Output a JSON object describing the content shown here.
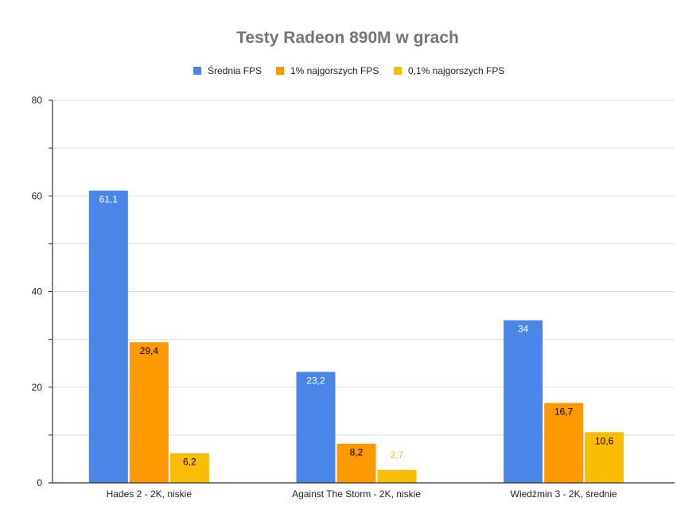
{
  "chart_data": {
    "type": "bar",
    "title": "Testy Radeon 890M w grach",
    "xlabel": "",
    "ylabel": "",
    "ylim": [
      0,
      80
    ],
    "yticks": [
      0,
      20,
      40,
      60,
      80
    ],
    "grid": true,
    "legend_position": "top",
    "categories": [
      "Hades 2 - 2K, niskie",
      "Against The Storm - 2K, niskie",
      "Wiedźmin 3 - 2K, średnie"
    ],
    "series": [
      {
        "name": "Średnia FPS",
        "color": "#4a86e8",
        "label_color": "#ffffff",
        "values": [
          61.1,
          23.2,
          34
        ],
        "labels": [
          "61,1",
          "23,2",
          "34"
        ]
      },
      {
        "name": "1% najgorszych FPS",
        "color": "#ff9900",
        "label_color": "#000000",
        "values": [
          29.4,
          8.2,
          16.7
        ],
        "labels": [
          "29,4",
          "8,2",
          "16,7"
        ]
      },
      {
        "name": "0,1% najgorszych FPS",
        "color": "#fbbc04",
        "label_color": "#000000",
        "values": [
          6.2,
          2.7,
          10.6
        ],
        "labels": [
          "6,2",
          "2,7",
          "10,6"
        ]
      }
    ]
  }
}
